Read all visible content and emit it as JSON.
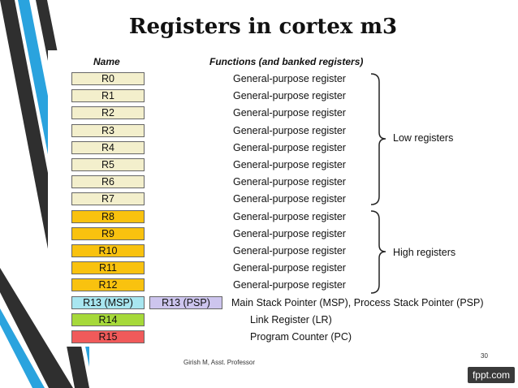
{
  "title": "Registers in cortex m3",
  "header": {
    "name": "Name",
    "functions": "Functions (and banked registers)"
  },
  "registers": [
    {
      "name": "R0",
      "function": "General-purpose register",
      "kind": "low"
    },
    {
      "name": "R1",
      "function": "General-purpose register",
      "kind": "low"
    },
    {
      "name": "R2",
      "function": "General-purpose register",
      "kind": "low"
    },
    {
      "name": "R3",
      "function": "General-purpose register",
      "kind": "low"
    },
    {
      "name": "R4",
      "function": "General-purpose register",
      "kind": "low"
    },
    {
      "name": "R5",
      "function": "General-purpose register",
      "kind": "low"
    },
    {
      "name": "R6",
      "function": "General-purpose register",
      "kind": "low"
    },
    {
      "name": "R7",
      "function": "General-purpose register",
      "kind": "low"
    },
    {
      "name": "R8",
      "function": "General-purpose register",
      "kind": "high"
    },
    {
      "name": "R9",
      "function": "General-purpose register",
      "kind": "high"
    },
    {
      "name": "R10",
      "function": "General-purpose register",
      "kind": "high"
    },
    {
      "name": "R11",
      "function": "General-purpose register",
      "kind": "high"
    },
    {
      "name": "R12",
      "function": "General-purpose register",
      "kind": "high"
    },
    {
      "name": "R13 (MSP)",
      "banked": "R13 (PSP)",
      "function": "Main Stack Pointer (MSP), Process Stack Pointer (PSP)",
      "kind": "msp"
    },
    {
      "name": "R14",
      "function": "Link Register (LR)",
      "kind": "lr"
    },
    {
      "name": "R15",
      "function": "Program Counter (PC)",
      "kind": "pc"
    }
  ],
  "groups": {
    "low": "Low registers",
    "high": "High registers"
  },
  "colors": {
    "low": "#f3efcc",
    "high": "#f9c20f",
    "msp": "#a8e6f0",
    "psp": "#cdc5ee",
    "lr": "#a6d93a",
    "pc": "#f05a5a",
    "stripe_dark": "#2f2f2f",
    "stripe_blue": "#2aa3de"
  },
  "footer": {
    "author": "Girish M, Asst. Professor",
    "page": "30",
    "brand": "fppt.com"
  }
}
